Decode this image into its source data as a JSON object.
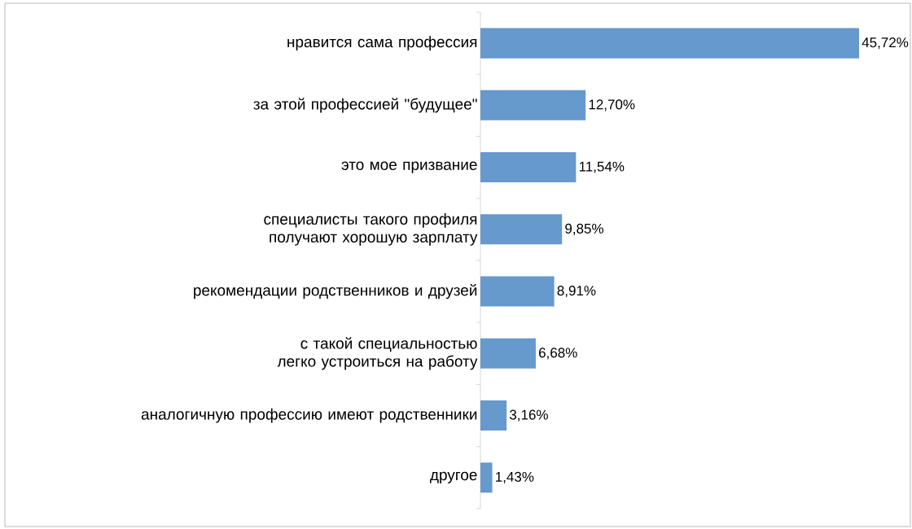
{
  "chart_data": {
    "type": "bar",
    "orientation": "horizontal",
    "categories": [
      "нравится сама профессия",
      "за этой профессией \"будущее\"",
      "это мое призвание",
      "специалисты такого профиля получают хорошую зарплату",
      "рекомендации родственников и друзей",
      "с такой специальностью легко устроиться на работу",
      "аналогичную профессию имеют родственники",
      "другое"
    ],
    "values": [
      45.72,
      12.7,
      11.54,
      9.85,
      8.91,
      6.68,
      3.16,
      1.43
    ],
    "value_labels": [
      "45,72%",
      "12,70%",
      "11,54%",
      "9,85%",
      "8,91%",
      "6,68%",
      "3,16%",
      "1,43%"
    ],
    "color": "#6699cc"
  }
}
